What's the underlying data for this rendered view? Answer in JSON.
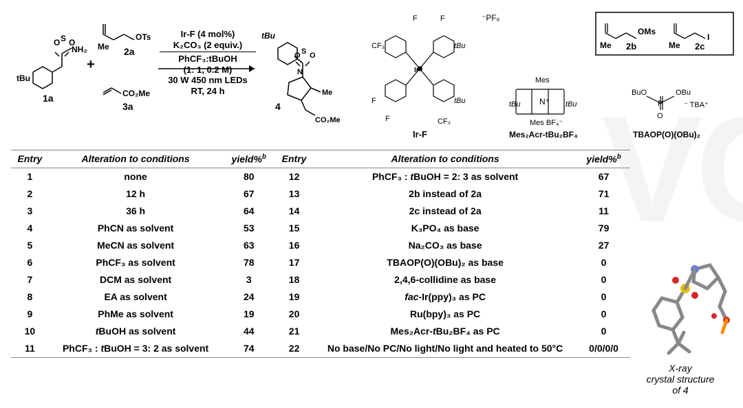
{
  "scheme": {
    "labels": {
      "la": "1a",
      "a2": "2a",
      "a3": "3a",
      "prod": "4",
      "b2": "2b",
      "c2": "2c",
      "irf": "Ir-F",
      "acr": "Mes₂Acr-tBu₂BF₄",
      "tbaop": "TBAOP(O)(OBu)₂"
    },
    "conditions": [
      "Ir-F (4 mol%)",
      "K₂CO₃ (2 equiv.)",
      "PhCF₃:tBuOH",
      "(1: 1, 0.2 M)",
      "30 W 450 nm LEDs",
      "RT, 24 h"
    ],
    "box_frags": {
      "oms": "OMs",
      "me1": "Me",
      "i": "I",
      "me2": "Me"
    }
  },
  "table": {
    "headers": {
      "entry": "Entry",
      "alt": "Alteration to conditions",
      "yield": "yield%",
      "yield_sup": "b"
    },
    "rows_left": [
      {
        "n": "1",
        "alt": "none",
        "y": "80"
      },
      {
        "n": "2",
        "alt": "12 h",
        "y": "67"
      },
      {
        "n": "3",
        "alt": "36 h",
        "y": "64"
      },
      {
        "n": "4",
        "alt": "PhCN as solvent",
        "y": "53"
      },
      {
        "n": "5",
        "alt": "MeCN as solvent",
        "y": "63"
      },
      {
        "n": "6",
        "alt": "PhCF₃ as solvent",
        "y": "78"
      },
      {
        "n": "7",
        "alt": "DCM as solvent",
        "y": "3"
      },
      {
        "n": "8",
        "alt": "EA as solvent",
        "y": "24"
      },
      {
        "n": "9",
        "alt": "PhMe as solvent",
        "y": "19"
      },
      {
        "n": "10",
        "alt_html": "<em>t</em>BuOH as solvent",
        "y": "44"
      },
      {
        "n": "11",
        "alt_html": "PhCF₃ : <em>t</em>BuOH = 3: 2 as solvent",
        "y": "74"
      }
    ],
    "rows_right": [
      {
        "n": "12",
        "alt_html": "PhCF₃ : <em>t</em>BuOH = 2: 3 as solvent",
        "y": "67"
      },
      {
        "n": "13",
        "alt": "2b instead of 2a",
        "y": "71"
      },
      {
        "n": "14",
        "alt": "2c instead of 2a",
        "y": "11"
      },
      {
        "n": "15",
        "alt_html": "K₃PO₄ as base",
        "y": "79"
      },
      {
        "n": "16",
        "alt_html": "Na₂CO₃ as base",
        "y": "27"
      },
      {
        "n": "17",
        "alt_html": "TBAOP(O)(OBu)₂ as base",
        "y": "0"
      },
      {
        "n": "18",
        "alt": "2,4,6-collidine as base",
        "y": "0"
      },
      {
        "n": "19",
        "alt_html": "<em>fac</em>-Ir(ppy)₃ as PC",
        "y": "0"
      },
      {
        "n": "20",
        "alt_html": "Ru(bpy)₃ as PC",
        "y": "0"
      },
      {
        "n": "21",
        "alt_html": "Mes₂Acr-<em>t</em>Bu₂BF₄ as PC",
        "y": "0"
      },
      {
        "n": "22",
        "alt": "No base/No PC/No light/No light and heated to 50°C",
        "y": "0/0/0/0"
      }
    ]
  },
  "xray": {
    "caption_l1": "X-ray",
    "caption_l2": "crystal structure",
    "caption_l3": "of 4"
  },
  "colors": {
    "text": "#000000",
    "border": "#888888",
    "bg": "#ffffff",
    "bond": "#888888",
    "S": "#e6c200",
    "O": "#d62728",
    "N": "#6b7fd7"
  }
}
